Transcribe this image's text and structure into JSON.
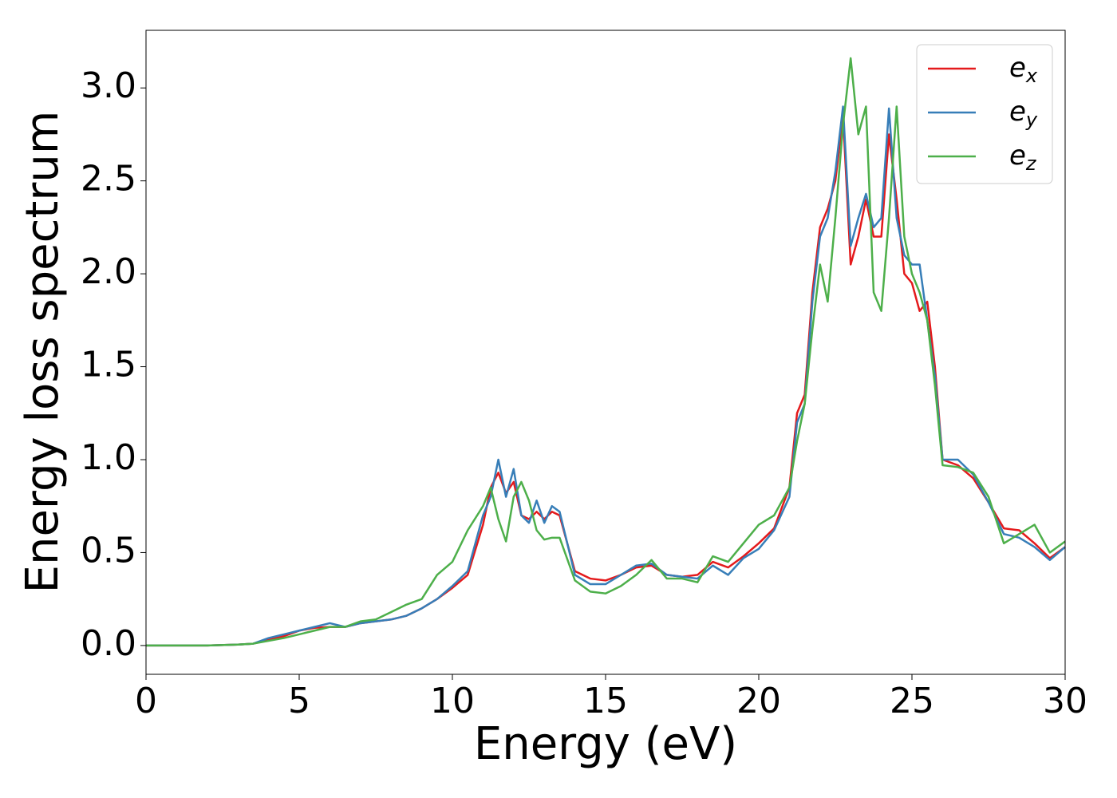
{
  "chart_data": {
    "type": "line",
    "xlabel": "Energy (eV)",
    "ylabel": "Energy loss spectrum",
    "x": [
      0,
      1,
      2,
      3,
      3.5,
      4,
      4.5,
      5,
      5.5,
      6,
      6.5,
      7,
      7.5,
      8,
      8.5,
      9,
      9.5,
      10,
      10.5,
      11,
      11.25,
      11.5,
      11.75,
      12,
      12.25,
      12.5,
      12.75,
      13,
      13.25,
      13.5,
      14,
      14.5,
      15,
      15.5,
      16,
      16.5,
      17,
      17.5,
      18,
      18.5,
      19,
      19.5,
      20,
      20.5,
      21,
      21.25,
      21.5,
      21.75,
      22,
      22.25,
      22.5,
      22.75,
      23,
      23.25,
      23.5,
      23.75,
      24,
      24.25,
      24.5,
      24.75,
      25,
      25.25,
      25.5,
      25.75,
      26,
      26.5,
      27,
      27.5,
      28,
      28.5,
      29,
      29.5,
      30
    ],
    "series": [
      {
        "name": "ex",
        "color": "#e41a1c",
        "values": [
          0,
          0,
          0,
          0.005,
          0.01,
          0.03,
          0.05,
          0.08,
          0.095,
          0.1,
          0.1,
          0.12,
          0.13,
          0.14,
          0.16,
          0.2,
          0.25,
          0.31,
          0.38,
          0.65,
          0.85,
          0.93,
          0.82,
          0.88,
          0.7,
          0.68,
          0.72,
          0.68,
          0.72,
          0.7,
          0.4,
          0.36,
          0.35,
          0.38,
          0.42,
          0.43,
          0.38,
          0.37,
          0.38,
          0.45,
          0.42,
          0.48,
          0.55,
          0.63,
          0.85,
          1.25,
          1.35,
          1.9,
          2.25,
          2.35,
          2.5,
          2.85,
          2.05,
          2.2,
          2.4,
          2.2,
          2.2,
          2.75,
          2.4,
          2.0,
          1.95,
          1.8,
          1.85,
          1.5,
          1.0,
          0.97,
          0.9,
          0.77,
          0.63,
          0.62,
          0.55,
          0.47,
          0.53
        ]
      },
      {
        "name": "ey",
        "color": "#377eb8",
        "values": [
          0,
          0,
          0,
          0.005,
          0.01,
          0.04,
          0.06,
          0.08,
          0.1,
          0.12,
          0.1,
          0.12,
          0.13,
          0.14,
          0.16,
          0.2,
          0.25,
          0.32,
          0.4,
          0.7,
          0.8,
          1.0,
          0.8,
          0.95,
          0.7,
          0.66,
          0.78,
          0.66,
          0.75,
          0.72,
          0.38,
          0.33,
          0.33,
          0.38,
          0.43,
          0.44,
          0.38,
          0.37,
          0.36,
          0.43,
          0.38,
          0.47,
          0.52,
          0.62,
          0.8,
          1.2,
          1.3,
          1.85,
          2.2,
          2.3,
          2.55,
          2.9,
          2.15,
          2.3,
          2.43,
          2.25,
          2.3,
          2.89,
          2.3,
          2.1,
          2.05,
          2.05,
          1.75,
          1.45,
          1.0,
          1.0,
          0.92,
          0.77,
          0.6,
          0.58,
          0.53,
          0.46,
          0.53
        ]
      },
      {
        "name": "ez",
        "color": "#4daf4a",
        "values": [
          0,
          0,
          0,
          0.005,
          0.01,
          0.025,
          0.04,
          0.06,
          0.08,
          0.1,
          0.1,
          0.13,
          0.14,
          0.18,
          0.22,
          0.25,
          0.38,
          0.45,
          0.62,
          0.75,
          0.85,
          0.68,
          0.56,
          0.8,
          0.88,
          0.78,
          0.62,
          0.57,
          0.58,
          0.58,
          0.35,
          0.29,
          0.28,
          0.32,
          0.38,
          0.46,
          0.36,
          0.36,
          0.34,
          0.48,
          0.45,
          0.55,
          0.65,
          0.7,
          0.85,
          1.1,
          1.3,
          1.7,
          2.05,
          1.85,
          2.3,
          2.8,
          3.16,
          2.75,
          2.9,
          1.9,
          1.8,
          2.3,
          2.9,
          2.2,
          2.0,
          1.9,
          1.75,
          1.4,
          0.97,
          0.96,
          0.93,
          0.8,
          0.55,
          0.6,
          0.65,
          0.5,
          0.56
        ]
      }
    ],
    "xlim": [
      0,
      30
    ],
    "xticks": [
      0,
      5,
      10,
      15,
      20,
      25,
      30
    ],
    "ylim": [
      -0.155,
      3.31
    ],
    "yticks": [
      {
        "value": 0,
        "label": "0.0"
      },
      0.5,
      {
        "value": 1,
        "label": "1.0"
      },
      1.5,
      {
        "value": 2,
        "label": "2.0"
      },
      2.5,
      {
        "value": 3,
        "label": "3.0"
      }
    ],
    "grid": false,
    "legend": "upper right"
  }
}
